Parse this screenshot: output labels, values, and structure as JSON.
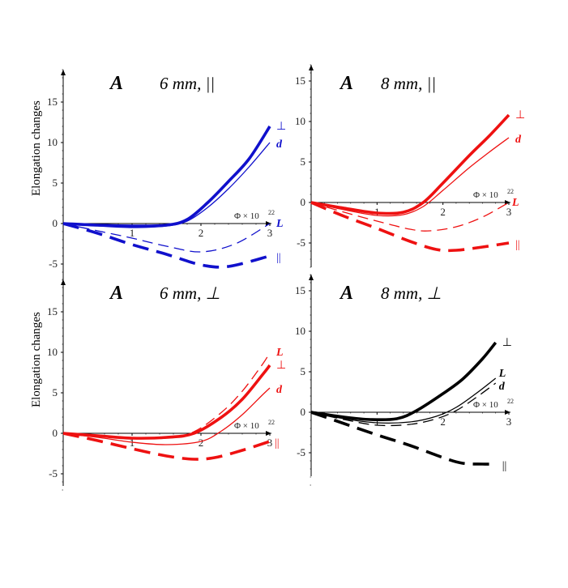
{
  "ylabel": "Elongation changes",
  "chart_data": [
    {
      "type": "line",
      "title_letter": "A",
      "title": "6 mm, ||",
      "xlabel": "Φ × 10",
      "xlabel_exp": "22",
      "xlim": [
        0,
        3
      ],
      "ylim": [
        -7,
        19
      ],
      "xticks": [
        "1",
        "2",
        "3"
      ],
      "yticks": [
        "-5",
        "0",
        "5",
        "10",
        "15"
      ],
      "color": "#1010cc",
      "series": [
        {
          "name": "⊥",
          "style": "thick",
          "x": [
            0,
            0.5,
            1,
            1.5,
            1.8,
            2.1,
            2.4,
            2.7,
            3.0
          ],
          "y": [
            0,
            -0.2,
            -0.3,
            -0.2,
            0.5,
            2.6,
            5.2,
            8.0,
            12.0
          ]
        },
        {
          "name": "d",
          "style": "thin",
          "x": [
            0,
            0.5,
            1,
            1.5,
            1.8,
            2.1,
            2.4,
            2.7,
            3.0
          ],
          "y": [
            0,
            -0.3,
            -0.5,
            -0.3,
            0.3,
            2.0,
            4.3,
            7.0,
            10.0
          ]
        },
        {
          "name": "L",
          "style": "thin-dash",
          "x": [
            0,
            0.5,
            1,
            1.5,
            2.0,
            2.5,
            3.0
          ],
          "y": [
            0,
            -0.9,
            -1.8,
            -2.8,
            -3.5,
            -2.5,
            0
          ]
        },
        {
          "name": "||",
          "style": "thick-dash",
          "x": [
            0,
            0.5,
            1,
            1.5,
            2.0,
            2.4,
            3.0
          ],
          "y": [
            0,
            -1.2,
            -2.6,
            -3.8,
            -5.1,
            -5.3,
            -4.0
          ]
        }
      ]
    },
    {
      "type": "line",
      "title_letter": "A",
      "title": "8 mm, ||",
      "xlabel": "Φ × 10",
      "xlabel_exp": "22",
      "xlim": [
        0,
        3
      ],
      "ylim": [
        -9,
        17
      ],
      "xticks": [
        "1",
        "2",
        "3"
      ],
      "yticks": [
        "-5",
        "0",
        "5",
        "10",
        "15"
      ],
      "color": "#ee1111",
      "series": [
        {
          "name": "⊥",
          "style": "thick",
          "x": [
            0,
            0.5,
            1,
            1.4,
            1.7,
            2.0,
            2.4,
            2.7,
            3.0
          ],
          "y": [
            0,
            -0.7,
            -1.3,
            -1.2,
            0,
            2.4,
            5.8,
            8.2,
            10.8
          ]
        },
        {
          "name": "d",
          "style": "thin",
          "x": [
            0,
            0.5,
            1,
            1.4,
            1.7,
            2.0,
            2.4,
            2.7,
            3.0
          ],
          "y": [
            0,
            -0.9,
            -1.6,
            -1.5,
            -0.5,
            1.5,
            4.3,
            6.2,
            8.0
          ]
        },
        {
          "name": "L",
          "style": "thin-dash",
          "x": [
            0,
            0.5,
            1,
            1.5,
            1.8,
            2.2,
            2.6,
            3.0
          ],
          "y": [
            0,
            -1.2,
            -2.3,
            -3.3,
            -3.5,
            -3.0,
            -1.8,
            0
          ]
        },
        {
          "name": "||",
          "style": "thick-dash",
          "x": [
            0,
            0.5,
            1,
            1.5,
            1.9,
            2.2,
            2.6,
            3.0
          ],
          "y": [
            0,
            -1.7,
            -3.2,
            -4.8,
            -5.8,
            -5.9,
            -5.5,
            -5.0
          ]
        }
      ]
    },
    {
      "type": "line",
      "title_letter": "A",
      "title": "6 mm, ⊥",
      "xlabel": "Φ × 10",
      "xlabel_exp": "22",
      "xlim": [
        0,
        3
      ],
      "ylim": [
        -7,
        19
      ],
      "xticks": [
        "1",
        "2",
        "3"
      ],
      "yticks": [
        "-5",
        "0",
        "5",
        "10",
        "15"
      ],
      "color": "#ee1111",
      "series": [
        {
          "name": "L",
          "style": "thin-dash",
          "x": [
            0,
            0.5,
            1,
            1.5,
            1.9,
            2.3,
            2.6,
            2.9,
            3.0
          ],
          "y": [
            0,
            -0.3,
            -0.6,
            -0.6,
            0.2,
            2.6,
            5.2,
            8.6,
            10.0
          ]
        },
        {
          "name": "⊥",
          "style": "thick",
          "x": [
            0,
            0.5,
            1,
            1.5,
            1.9,
            2.3,
            2.6,
            2.9,
            3.0
          ],
          "y": [
            0,
            -0.3,
            -0.6,
            -0.5,
            0.0,
            2.0,
            4.2,
            7.3,
            8.4
          ]
        },
        {
          "name": "d",
          "style": "thin",
          "x": [
            0,
            0.5,
            1,
            1.5,
            2.0,
            2.3,
            2.6,
            2.9,
            3.0
          ],
          "y": [
            0,
            -0.5,
            -1.1,
            -1.4,
            -1.0,
            0.3,
            2.3,
            4.8,
            5.6
          ]
        },
        {
          "name": "||",
          "style": "thick-dash",
          "x": [
            0,
            0.5,
            1,
            1.5,
            1.9,
            2.2,
            2.6,
            3.0
          ],
          "y": [
            0,
            -0.9,
            -1.9,
            -2.8,
            -3.2,
            -3.0,
            -2.1,
            -1.0
          ]
        }
      ]
    },
    {
      "type": "line",
      "title_letter": "A",
      "title": "8 mm, ⊥",
      "xlabel": "Φ × 10",
      "xlabel_exp": "22",
      "xlim": [
        0,
        3
      ],
      "ylim": [
        -9,
        17
      ],
      "xticks": [
        "1",
        "2",
        "3"
      ],
      "yticks": [
        "-5",
        "0",
        "5",
        "10",
        "15"
      ],
      "color": "#000000",
      "series": [
        {
          "name": "⊥",
          "style": "thick",
          "x": [
            0,
            0.5,
            0.9,
            1.3,
            1.6,
            2.0,
            2.3,
            2.6,
            2.8
          ],
          "y": [
            0,
            -0.6,
            -0.9,
            -0.8,
            0.2,
            2.3,
            4.1,
            6.6,
            8.6
          ]
        },
        {
          "name": "L",
          "style": "thin",
          "x": [
            0,
            0.5,
            1.0,
            1.5,
            1.9,
            2.2,
            2.5,
            2.8
          ],
          "y": [
            0,
            -0.8,
            -1.3,
            -1.2,
            -0.5,
            0.6,
            2.3,
            4.2
          ]
        },
        {
          "name": "d",
          "style": "thin-dash",
          "x": [
            0,
            0.5,
            1.0,
            1.5,
            1.9,
            2.2,
            2.5,
            2.8
          ],
          "y": [
            0,
            -0.9,
            -1.6,
            -1.5,
            -0.8,
            0.2,
            1.8,
            3.6
          ]
        },
        {
          "name": "||",
          "style": "thick-dash",
          "x": [
            0,
            0.5,
            1.0,
            1.5,
            2.0,
            2.3,
            2.6,
            2.8
          ],
          "y": [
            0,
            -1.4,
            -2.8,
            -4.1,
            -5.6,
            -6.3,
            -6.4,
            -6.4
          ]
        }
      ]
    }
  ]
}
